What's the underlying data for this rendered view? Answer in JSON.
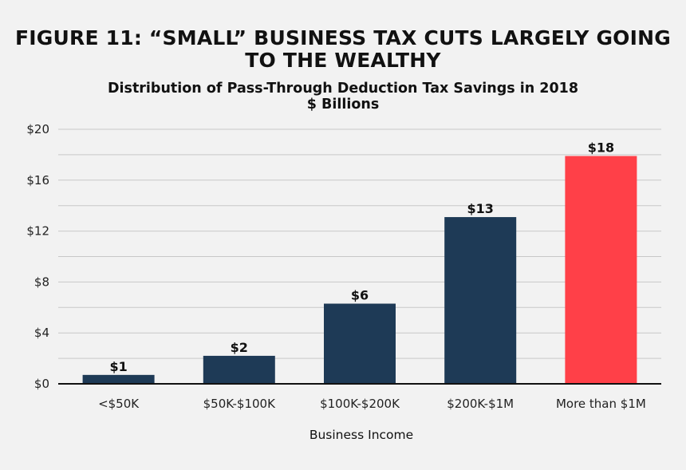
{
  "chart_data": {
    "type": "bar",
    "title": "FIGURE 11: “SMALL” BUSINESS TAX CUTS LARGELY GOING TO THE WEALTHY",
    "subtitle": [
      "Distribution of Pass-Through Deduction Tax Savings in 2018",
      "$ Billions"
    ],
    "xlabel": "Business Income",
    "ylabel": "",
    "categories": [
      "<$50K",
      "$50K-$100K",
      "$100K-$200K",
      "$200K-$1M",
      "More than $1M"
    ],
    "values": [
      0.7,
      2.2,
      6.3,
      13.1,
      17.9
    ],
    "data_labels": [
      "$1",
      "$2",
      "$6",
      "$13",
      "$18"
    ],
    "bar_colors": [
      "#1e3a56",
      "#1e3a56",
      "#1e3a56",
      "#1e3a56",
      "#ff4048"
    ],
    "ylim": [
      0,
      20
    ],
    "ytick_values": [
      0,
      4,
      8,
      12,
      16,
      20
    ],
    "ytick_labels": [
      "$0",
      "$4",
      "$8",
      "$12",
      "$16",
      "$20"
    ],
    "grid": true,
    "legend": "none"
  },
  "colors": {
    "background": "#f2f2f2",
    "grid": "#c8c8c8",
    "axis": "#111111"
  }
}
